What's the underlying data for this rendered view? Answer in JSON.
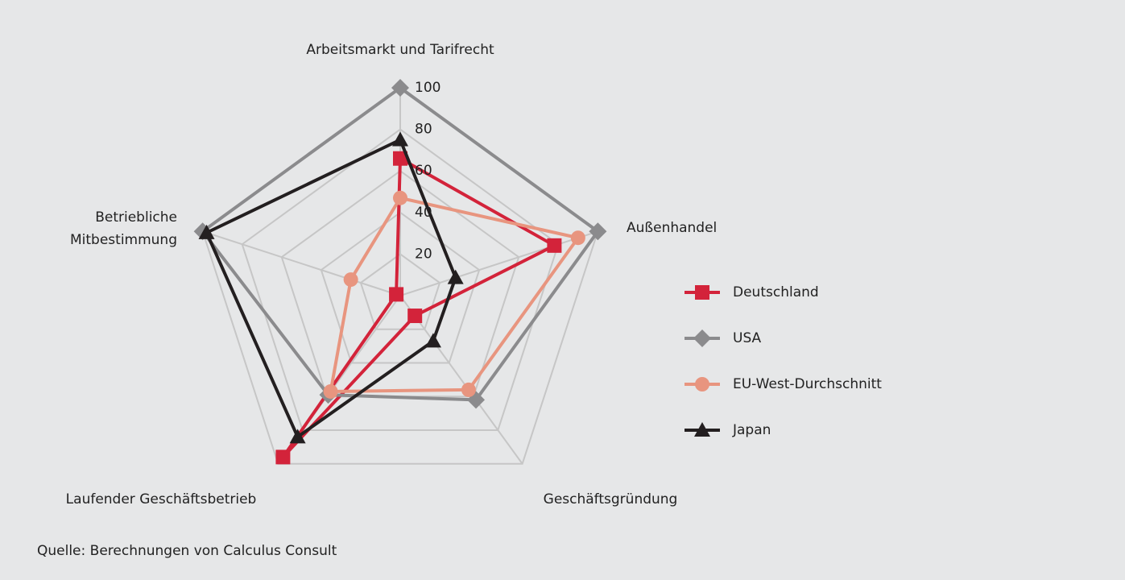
{
  "chart_data": {
    "type": "radar",
    "categories": [
      "Arbeitsmarkt und Tarifrecht",
      "Außenhandel",
      "Geschäftsgründung",
      "Laufender Geschäftsbetrieb",
      "Betriebliche Mitbestimmung"
    ],
    "rlim": [
      0,
      100
    ],
    "rticks": [
      20,
      40,
      60,
      80,
      100
    ],
    "grid": true,
    "legend": "right",
    "series": [
      {
        "name": "Deutschland",
        "color": "#d3233a",
        "marker": "square",
        "values": [
          66,
          78,
          12,
          96,
          2
        ]
      },
      {
        "name": "USA",
        "color": "#8b8b8d",
        "marker": "diamond",
        "values": [
          100,
          100,
          62,
          59,
          100
        ]
      },
      {
        "name": "EU-West-Durchschnitt",
        "color": "#e8957f",
        "marker": "circle",
        "values": [
          47,
          90,
          56,
          57,
          25
        ]
      },
      {
        "name": "Japan",
        "color": "#231f20",
        "marker": "triangle",
        "values": [
          75,
          28,
          27,
          84,
          98
        ]
      }
    ],
    "source": "Quelle: Berechnungen von Calculus Consult"
  }
}
